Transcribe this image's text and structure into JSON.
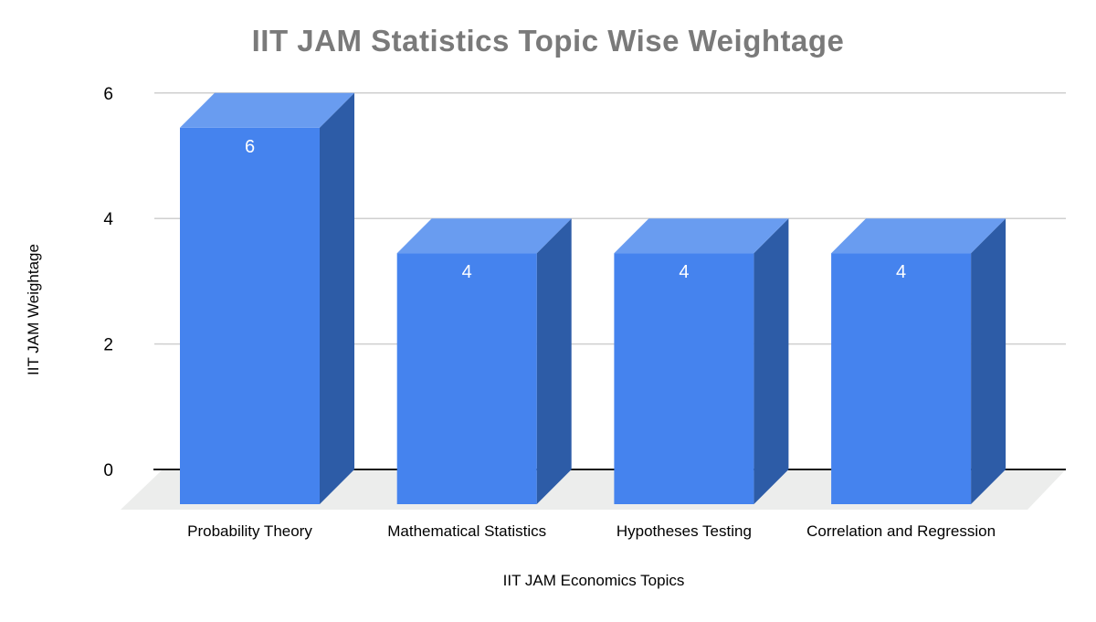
{
  "chart_data": {
    "type": "bar",
    "variant": "3d-column",
    "title": "IIT JAM Statistics Topic Wise Weightage",
    "xlabel": "IIT JAM Economics Topics",
    "ylabel": "IIT JAM Weightage",
    "categories": [
      "Probability Theory",
      "Mathematical Statistics",
      "Hypotheses Testing",
      "Correlation and Regression"
    ],
    "values": [
      6,
      4,
      4,
      4
    ],
    "data_labels": [
      "6",
      "4",
      "4",
      "4"
    ],
    "yticks": [
      0,
      2,
      4,
      6
    ],
    "ylim": [
      0,
      6
    ],
    "grid": true,
    "legend": "none",
    "colors": {
      "bar_front": "#4583EE",
      "bar_top": "#699CF0",
      "bar_side": "#2D5CA7",
      "floor": "#ECEDEC",
      "gridline": "#CFCFCF",
      "baseline": "#1A1A1A",
      "title": "#7A7A7A",
      "axis_text": "#000000",
      "value_label": "#FFFFFF"
    }
  }
}
